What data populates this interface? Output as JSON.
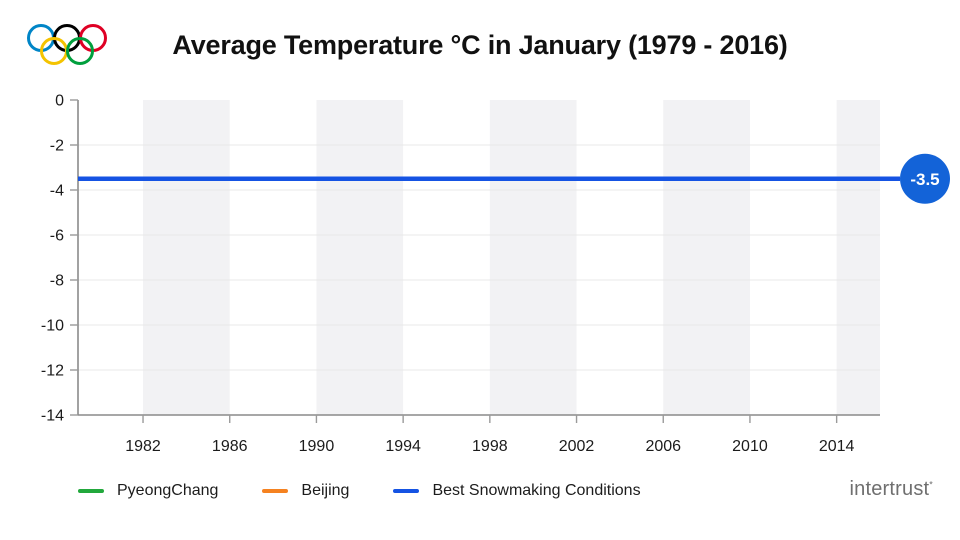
{
  "title": "Average Temperature °C in January (1979 - 2016)",
  "header": {
    "logo": "olympic-rings"
  },
  "legend": {
    "items": [
      {
        "label": "PyeongChang",
        "color": "#22a83c"
      },
      {
        "label": "Beijing",
        "color": "#f58220"
      },
      {
        "label": "Best Snowmaking Conditions",
        "color": "#1553e3"
      }
    ]
  },
  "branding": {
    "name": "intertrust",
    "mark": "*"
  },
  "colors": {
    "band": "#f2f2f4",
    "gridline": "#e8e8e8",
    "axis": "#8a8a8a",
    "tick": "#9a9a9a",
    "label": "#1b1b1b",
    "line": "#1553e3",
    "marker": "#1363d8",
    "marker_text": "#ffffff",
    "olympic_blue": "#0085C7",
    "olympic_yellow": "#F4C300",
    "olympic_black": "#000000",
    "olympic_green": "#009F3D",
    "olympic_red": "#DF0024"
  },
  "chart_data": {
    "type": "line",
    "title": "Average Temperature °C in January (1979 - 2016)",
    "xlabel": "",
    "ylabel": "",
    "x_range": [
      1979,
      2016
    ],
    "x_ticks": [
      1982,
      1986,
      1990,
      1994,
      1998,
      2002,
      2006,
      2010,
      2014
    ],
    "y_ticks": [
      0,
      -2,
      -4,
      -6,
      -8,
      -10,
      -12,
      -14
    ],
    "ylim": [
      -14,
      0
    ],
    "grid": true,
    "background_bands_x": [
      [
        1982,
        1986
      ],
      [
        1990,
        1994
      ],
      [
        1998,
        2002
      ],
      [
        2006,
        2010
      ],
      [
        2014,
        2016
      ]
    ],
    "legend_position": "bottom-left",
    "series": [
      {
        "name": "PyeongChang",
        "color": "#22a83c",
        "visible_in_plot": false,
        "values": []
      },
      {
        "name": "Beijing",
        "color": "#f58220",
        "visible_in_plot": false,
        "values": []
      },
      {
        "name": "Best Snowmaking Conditions",
        "color": "#1553e3",
        "visible_in_plot": true,
        "constant_value": -3.5,
        "x_span": [
          1979,
          2016
        ]
      }
    ],
    "annotation": {
      "label": "-3.5",
      "value": -3.5,
      "shape": "circle",
      "color": "#1363d8"
    }
  }
}
